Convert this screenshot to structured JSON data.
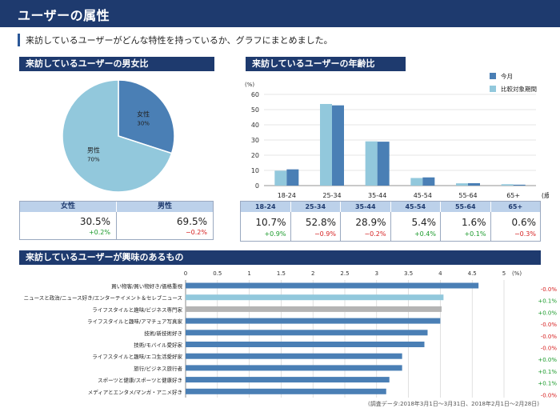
{
  "header": {
    "title": "ユーザーの属性"
  },
  "lead": "来訪しているユーザーがどんな特性を持っているか、グラフにまとめました。",
  "gender": {
    "title": "来訪しているユーザーの男女比",
    "slice_labels": [
      {
        "name": "女性",
        "pct": "30%"
      },
      {
        "name": "男性",
        "pct": "70%"
      }
    ],
    "table": {
      "headers": [
        "女性",
        "男性"
      ],
      "values": [
        "30.5%",
        "69.5%"
      ],
      "deltas": [
        "+0.2%",
        "−0.2%"
      ]
    }
  },
  "age": {
    "title": "来訪しているユーザーの年齢比",
    "table": {
      "headers": [
        "18-24",
        "25-34",
        "35-44",
        "45-54",
        "55-64",
        "65+"
      ],
      "values": [
        "10.7%",
        "52.8%",
        "28.9%",
        "5.4%",
        "1.6%",
        "0.6%"
      ],
      "deltas": [
        "+0.9%",
        "−0.9%",
        "−0.2%",
        "+0.4%",
        "+0.1%",
        "−0.3%"
      ]
    }
  },
  "interest": {
    "title": "来訪しているユーザーが興味のあるもの",
    "deltas": [
      "-0.0%",
      "+0.1%",
      "+0.0%",
      "-0.0%",
      "-0.0%",
      "-0.0%",
      "+0.0%",
      "+0.1%",
      "+0.1%",
      "-0.0%"
    ]
  },
  "footnote": "(調査データ:2018年3月1日〜3月31日、2018年2月1日〜2月28日)",
  "colors": {
    "header": "#1e3a6e",
    "current": "#4a7fb5",
    "compare": "#92c8dc",
    "gray": "#b4b4b4",
    "positive": "#1a9a2a",
    "negative": "#d62020"
  },
  "chart_data": [
    {
      "type": "pie",
      "labels": [
        "女性",
        "男性"
      ],
      "values": [
        30,
        70
      ],
      "colors": [
        "#4a7fb5",
        "#92c8dc"
      ]
    },
    {
      "type": "bar",
      "categories": [
        "18-24",
        "25-34",
        "35-44",
        "45-54",
        "55-64",
        "65+"
      ],
      "xlabel": "(歳)",
      "ylabel": "(%)",
      "ylim": [
        0,
        60
      ],
      "yticks": [
        0,
        10,
        20,
        30,
        40,
        50,
        60
      ],
      "grid": true,
      "legend_position": "top-right",
      "series": [
        {
          "name": "今月",
          "color": "#4a7fb5",
          "values": [
            10.7,
            52.8,
            28.9,
            5.4,
            1.6,
            0.6
          ]
        },
        {
          "name": "比較対象期間",
          "color": "#92c8dc",
          "values": [
            9.8,
            53.7,
            29.1,
            5.0,
            1.5,
            0.9
          ]
        }
      ]
    },
    {
      "type": "bar",
      "orientation": "horizontal",
      "xlabel": "(%)",
      "xlim": [
        0,
        5
      ],
      "xticks": [
        "0",
        "0.5",
        "1",
        "1.5",
        "2",
        "2.5",
        "3",
        "3.5",
        "4",
        "4.5",
        "5"
      ],
      "grid": true,
      "categories": [
        "買い物客/買い物好き/価格重視",
        "ニュースと政治/ニュース好き/エンターテイメント＆セレブニュース",
        "ライフスタイルと趣味/ビジネス専門家",
        "ライフスタイルと趣味/アマチュア写真家",
        "技術/新技術好き",
        "技術/モバイル愛好家",
        "ライフスタイルと趣味/エコ生活愛好家",
        "旅行/ビジネス旅行者",
        "スポーツと健康/スポーツと健康好き",
        "メディアとエンタメ/マンガ・アニメ好き"
      ],
      "values": [
        4.6,
        4.05,
        4.02,
        4.0,
        3.8,
        3.75,
        3.4,
        3.4,
        3.2,
        3.15
      ],
      "bar_colors": [
        "#4a7fb5",
        "#92c8dc",
        "#b4b4b4",
        "#4a7fb5",
        "#4a7fb5",
        "#4a7fb5",
        "#4a7fb5",
        "#4a7fb5",
        "#4a7fb5",
        "#4a7fb5"
      ]
    }
  ]
}
